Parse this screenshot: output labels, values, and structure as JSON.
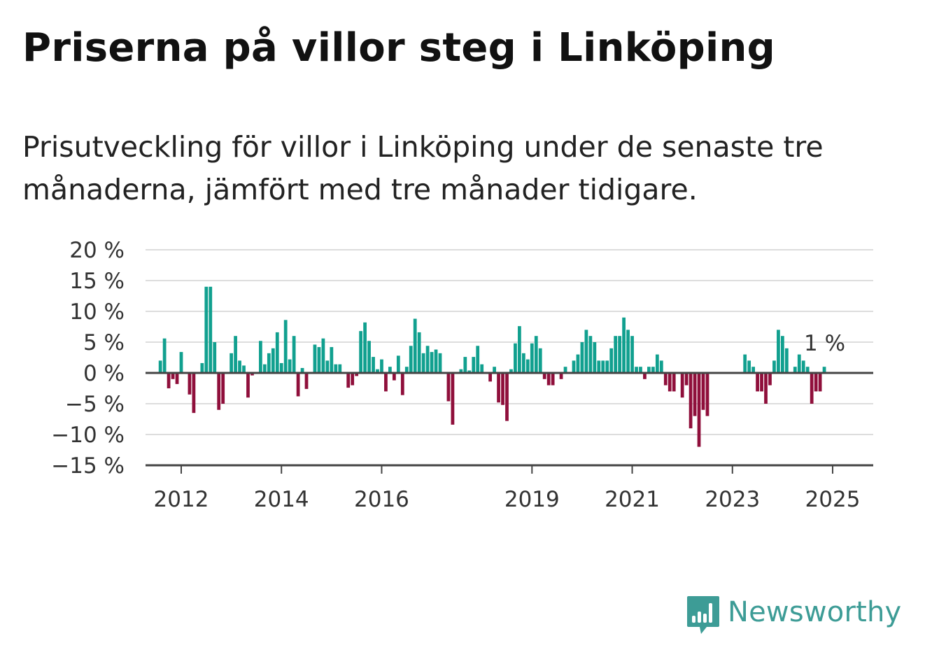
{
  "title": "Priserna på villor steg i Linköping",
  "subtitle": "Prisutveckling för villor i Linköping under de senaste tre månaderna, jämfört med tre månader tidigare.",
  "brand": {
    "name": "Newsworthy",
    "color": "#3d9c96"
  },
  "colors": {
    "positive": "#11a08f",
    "negative": "#8f0f3b",
    "grid": "#dddddd",
    "axis": "#444444",
    "text": "#333333"
  },
  "chart_data": {
    "type": "bar",
    "title": "Priserna på villor steg i Linköping",
    "xlabel": "",
    "ylabel": "",
    "ylim": [
      -15,
      20
    ],
    "y_ticks": [
      20,
      15,
      10,
      5,
      0,
      -5,
      -10,
      -15
    ],
    "y_tick_labels": [
      "20 %",
      "15 %",
      "10 %",
      "5 %",
      "0 %",
      "−5 %",
      "−10 %",
      "−15 %"
    ],
    "x_ticks": [
      2012,
      2014,
      2016,
      2019,
      2021,
      2023,
      2025
    ],
    "x_tick_labels": [
      "2012",
      "2014",
      "2016",
      "2019",
      "2021",
      "2023",
      "2025"
    ],
    "grid": true,
    "x_start": 2011.5,
    "x_step": 0.0833333,
    "values": [
      null,
      2,
      5.6,
      -2.5,
      -1,
      -1.8,
      3.4,
      0,
      -3.5,
      -6.5,
      0,
      1.6,
      14,
      14,
      5,
      -6,
      -5,
      0,
      3.2,
      6,
      2,
      1.2,
      -4,
      -0.4,
      0,
      5.2,
      1.4,
      3.2,
      4,
      6.6,
      1.6,
      8.6,
      2.2,
      6,
      -3.8,
      0.8,
      -2.6,
      0,
      4.6,
      4.2,
      5.6,
      2,
      4.2,
      1.4,
      1.4,
      0,
      -2.4,
      -2,
      -0.5,
      6.8,
      8.2,
      5.2,
      2.6,
      0.6,
      2.2,
      -3,
      1,
      -1.2,
      2.8,
      -3.6,
      1,
      4.4,
      8.8,
      6.6,
      3.2,
      4.4,
      3.4,
      3.8,
      3.2,
      0,
      -4.6,
      -8.4,
      0,
      0.6,
      2.6,
      0.4,
      2.6,
      4.4,
      1.4,
      0,
      -1.4,
      1,
      -4.8,
      -5.2,
      -7.8,
      0.6,
      4.8,
      7.6,
      3.2,
      2.2,
      4.8,
      6,
      4,
      -1,
      -2,
      -2,
      0,
      -1,
      1,
      0,
      2,
      3,
      5,
      7,
      6,
      5,
      2,
      2,
      2,
      4,
      6,
      6,
      9,
      7,
      6,
      1,
      1,
      -1,
      1,
      1,
      3,
      2,
      -2,
      -3,
      -3,
      0,
      -4,
      -2,
      -9,
      -7,
      -12,
      -6,
      -7,
      0,
      0,
      0,
      0,
      0,
      0,
      0,
      0,
      3,
      2,
      1,
      -3,
      -3,
      -5,
      -2,
      2,
      7,
      6,
      4,
      0,
      1,
      3,
      2,
      1,
      -5,
      -3,
      -3,
      1
    ],
    "last_value_label": "1 %"
  }
}
